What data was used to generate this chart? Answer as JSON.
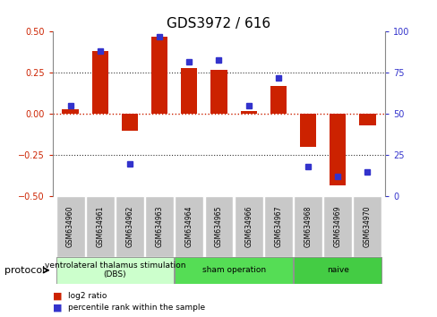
{
  "title": "GDS3972 / 616",
  "samples": [
    "GSM634960",
    "GSM634961",
    "GSM634962",
    "GSM634963",
    "GSM634964",
    "GSM634965",
    "GSM634966",
    "GSM634967",
    "GSM634968",
    "GSM634969",
    "GSM634970"
  ],
  "log2_ratio": [
    0.03,
    0.38,
    -0.1,
    0.47,
    0.28,
    0.27,
    0.02,
    0.17,
    -0.2,
    -0.43,
    -0.07
  ],
  "percentile_rank": [
    55,
    88,
    20,
    97,
    82,
    83,
    55,
    72,
    18,
    12,
    15
  ],
  "ylim_left": [
    -0.5,
    0.5
  ],
  "ylim_right": [
    0,
    100
  ],
  "yticks_left": [
    -0.5,
    -0.25,
    0,
    0.25,
    0.5
  ],
  "yticks_right": [
    0,
    25,
    50,
    75,
    100
  ],
  "bar_color": "#cc2200",
  "dot_color": "#3333cc",
  "zero_line_color": "#cc2200",
  "hline_color": "#333333",
  "protocol_groups": [
    {
      "label": "ventrolateral thalamus stimulation\n(DBS)",
      "start": 0,
      "end": 3,
      "color": "#ccffcc"
    },
    {
      "label": "sham operation",
      "start": 4,
      "end": 7,
      "color": "#55dd55"
    },
    {
      "label": "naive",
      "start": 8,
      "end": 10,
      "color": "#44cc44"
    }
  ],
  "legend_items": [
    {
      "color": "#cc2200",
      "label": "log2 ratio"
    },
    {
      "color": "#3333cc",
      "label": "percentile rank within the sample"
    }
  ],
  "protocol_label": "protocol",
  "title_fontsize": 11,
  "tick_fontsize": 7,
  "label_fontsize": 8,
  "sample_fontsize": 5.5,
  "proto_fontsize": 6.5
}
